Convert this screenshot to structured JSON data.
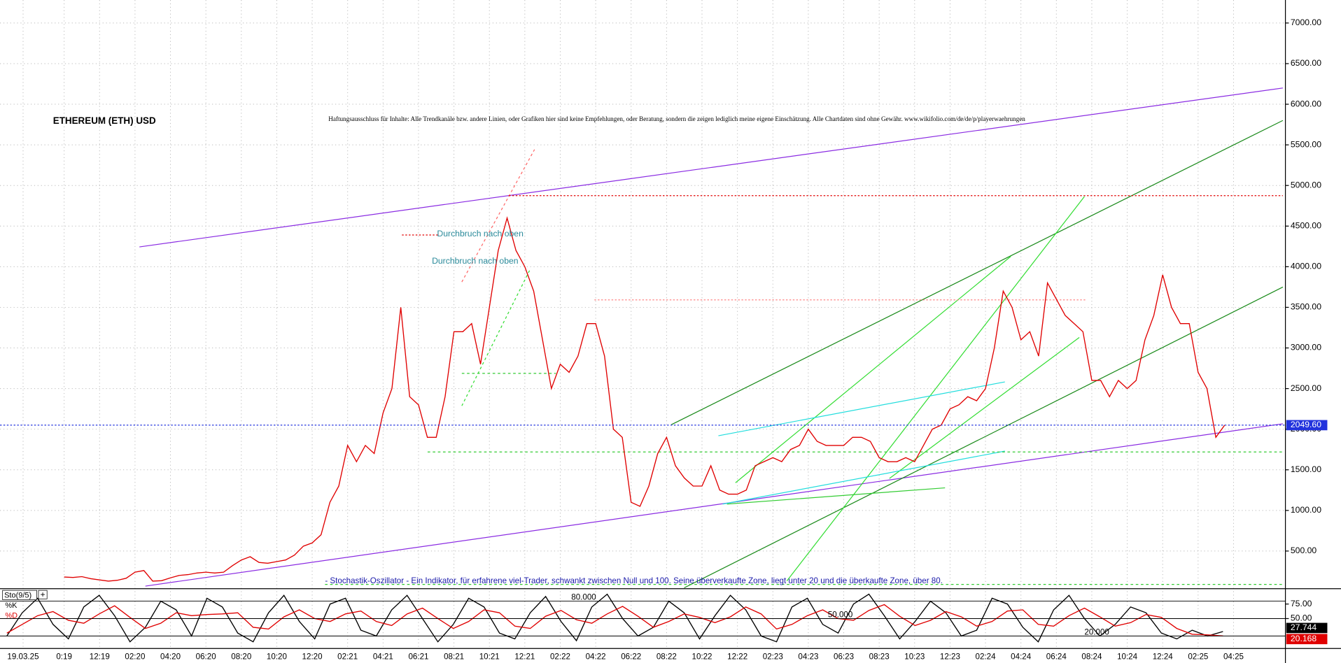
{
  "chart_data": [
    {
      "type": "line",
      "title": "ETHEREUM (ETH) USD",
      "subtitle": "Haftungsausschluss für Inhalte: Alle Trendkanäle bzw. andere Linien, oder Grafiken hier sind keine Empfehlungen, oder Beratung, sondern die zeigen lediglich meine eigene Einschätzung. Alle Chartdaten sind ohne Gewähr.  www.wikifolio.com/de/de/p/playerwaehrungen",
      "annotations": [
        "Durchbruch nach oben",
        "Durchbruch nach oben"
      ],
      "color": "#e00000",
      "values": [
        180,
        175,
        185,
        160,
        145,
        130,
        140,
        165,
        240,
        260,
        130,
        135,
        170,
        200,
        210,
        230,
        240,
        230,
        240,
        320,
        390,
        430,
        360,
        350,
        370,
        390,
        450,
        560,
        600,
        700,
        1100,
        1300,
        1800,
        1600,
        1800,
        1700,
        2200,
        2500,
        3500,
        2400,
        2300,
        1900,
        1900,
        2400,
        3200,
        3200,
        3300,
        2800,
        3500,
        4200,
        4600,
        4200,
        4000,
        3700,
        3100,
        2500,
        2800,
        2700,
        2900,
        3300,
        3300,
        2900,
        2000,
        1900,
        1100,
        1050,
        1300,
        1700,
        1900,
        1550,
        1400,
        1300,
        1300,
        1550,
        1250,
        1200,
        1200,
        1250,
        1550,
        1600,
        1650,
        1600,
        1750,
        1800,
        2000,
        1850,
        1800,
        1800,
        1800,
        1900,
        1900,
        1850,
        1650,
        1600,
        1600,
        1650,
        1600,
        1800,
        2000,
        2050,
        2250,
        2300,
        2400,
        2350,
        2500,
        3000,
        3700,
        3500,
        3100,
        3200,
        2900,
        3800,
        3600,
        3400,
        3300,
        3200,
        2600,
        2600,
        2400,
        2600,
        2500,
        2600,
        3100,
        3400,
        3900,
        3500,
        3300,
        3300,
        2700,
        2500,
        1900,
        2049.6
      ],
      "last_value": {
        "value": 2049.6,
        "label": "2049.60"
      },
      "ylim": [
        0,
        7300
      ],
      "yticks": [
        {
          "value": 500,
          "label": "500.00"
        },
        {
          "value": 1000,
          "label": "1000.00"
        },
        {
          "value": 1500,
          "label": "1500.00"
        },
        {
          "value": 2000,
          "label": "2000.00"
        },
        {
          "value": 2500,
          "label": "2500.00"
        },
        {
          "value": 3000,
          "label": "3000.00"
        },
        {
          "value": 3500,
          "label": "3500.00"
        },
        {
          "value": 4000,
          "label": "4000.00"
        },
        {
          "value": 4500,
          "label": "4500.00"
        },
        {
          "value": 5000,
          "label": "5000.00"
        },
        {
          "value": 5500,
          "label": "5500.00"
        },
        {
          "value": 6000,
          "label": "6000.00"
        },
        {
          "value": 6500,
          "label": "6500.00"
        },
        {
          "value": 7000,
          "label": "7000.00"
        }
      ],
      "x_tick_labels": [
        "19.03.25",
        "0:19",
        "12:19",
        "02:20",
        "04:20",
        "06:20",
        "08:20",
        "10:20",
        "12:20",
        "02:21",
        "04:21",
        "06:21",
        "08:21",
        "10:21",
        "12:21",
        "02:22",
        "04:22",
        "06:22",
        "08:22",
        "10:22",
        "12:22",
        "02:23",
        "04:23",
        "06:23",
        "08:23",
        "10:23",
        "12:23",
        "02:24",
        "04:24",
        "06:24",
        "08:24",
        "10:24",
        "12:24",
        "02:25",
        "04:25"
      ],
      "grid": true
    },
    {
      "type": "line",
      "title": "Sto(9/5)",
      "description": "- Stochastik-Oszillator - Ein Indikator, für erfahrene viel-Trader, schwankt zwischen Null und 100. Seine überverkaufte Zone, liegt unter 20 und die überkaufte Zone, über 80.",
      "series": [
        {
          "name": "%K",
          "color": "#000000",
          "last": {
            "value": 27.744,
            "label": "27.744"
          },
          "values": [
            20,
            60,
            85,
            40,
            15,
            70,
            90,
            55,
            10,
            35,
            80,
            65,
            20,
            85,
            70,
            25,
            10,
            60,
            90,
            45,
            15,
            75,
            85,
            30,
            20,
            65,
            90,
            50,
            10,
            40,
            85,
            70,
            25,
            15,
            60,
            88,
            45,
            12,
            70,
            92,
            50,
            20,
            35,
            80,
            60,
            15,
            55,
            90,
            65,
            20,
            10,
            70,
            85,
            40,
            25,
            75,
            92,
            55,
            15,
            45,
            80,
            60,
            20,
            30,
            85,
            75,
            35,
            10,
            65,
            90,
            50,
            20,
            40,
            70,
            60,
            25,
            15,
            30,
            20,
            27.744
          ]
        },
        {
          "name": "%D",
          "color": "#e00000",
          "last": {
            "value": 20.168,
            "label": "20.168"
          },
          "values": [
            25,
            40,
            55,
            62,
            47,
            42,
            58,
            72,
            52,
            33,
            42,
            60,
            55,
            57,
            58,
            60,
            35,
            32,
            53,
            65,
            50,
            45,
            58,
            63,
            45,
            38,
            58,
            68,
            50,
            33,
            45,
            65,
            60,
            37,
            33,
            54,
            64,
            48,
            42,
            58,
            71,
            54,
            35,
            45,
            58,
            52,
            43,
            53,
            70,
            58,
            32,
            40,
            55,
            65,
            50,
            47,
            64,
            74,
            54,
            38,
            47,
            62,
            53,
            37,
            45,
            63,
            65,
            40,
            37,
            55,
            68,
            53,
            37,
            43,
            57,
            52,
            33,
            23,
            22,
            20.168
          ]
        }
      ],
      "levels": [
        {
          "value": 80,
          "label": "80.000"
        },
        {
          "value": 50,
          "label": "50.000"
        },
        {
          "value": 20,
          "label": "20.000"
        }
      ],
      "ylim": [
        0,
        100
      ],
      "yticks": [
        {
          "value": 75,
          "label": "75.00"
        },
        {
          "value": 50,
          "label": "50.00"
        }
      ]
    }
  ]
}
